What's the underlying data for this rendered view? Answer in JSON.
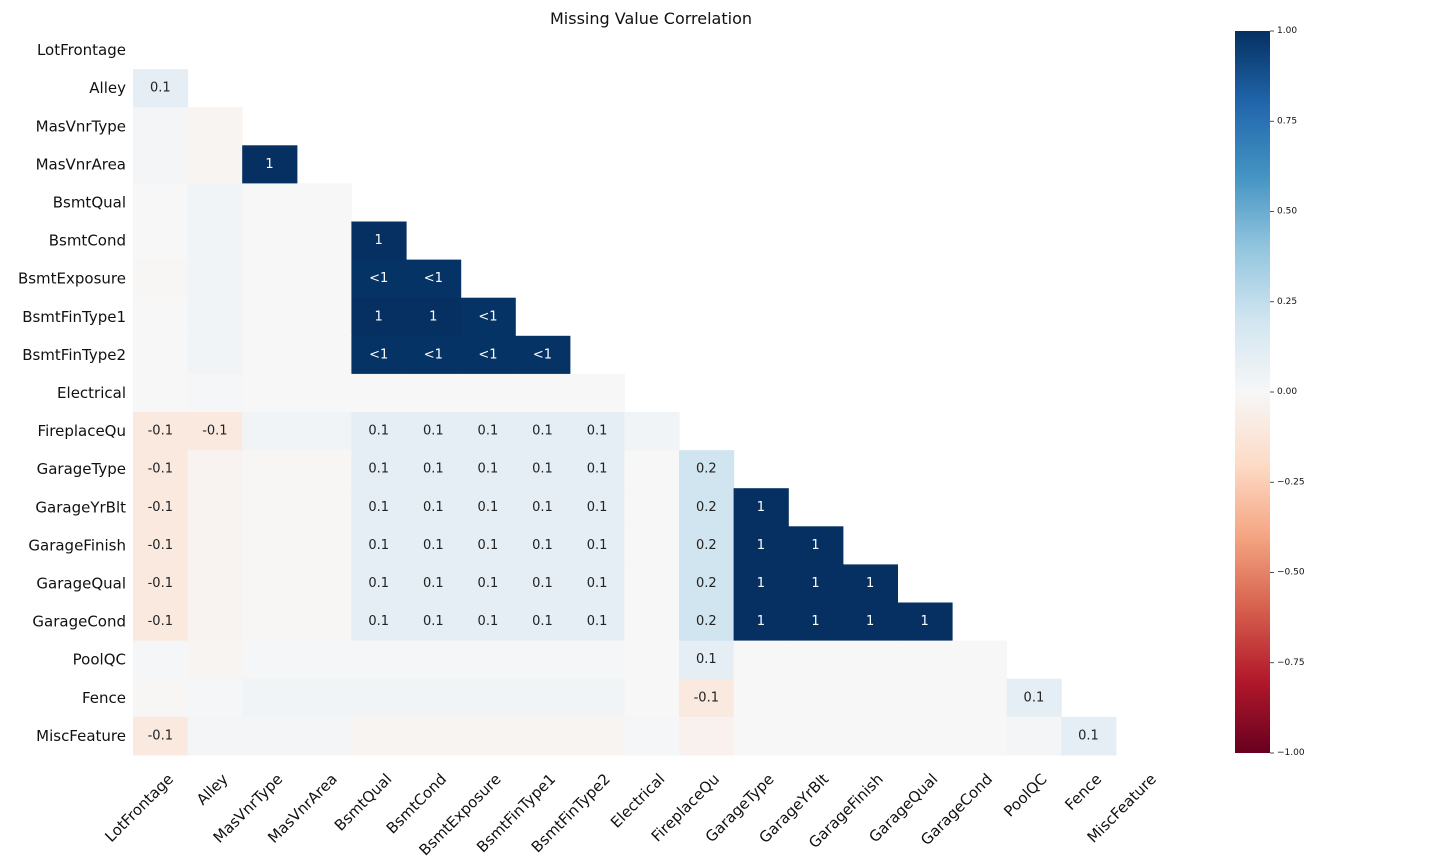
{
  "chart_data": {
    "type": "heatmap",
    "title": "Missing Value Correlation",
    "variables": [
      "LotFrontage",
      "Alley",
      "MasVnrType",
      "MasVnrArea",
      "BsmtQual",
      "BsmtCond",
      "BsmtExposure",
      "BsmtFinType1",
      "BsmtFinType2",
      "Electrical",
      "FireplaceQu",
      "GarageType",
      "GarageYrBlt",
      "GarageFinish",
      "GarageQual",
      "GarageCond",
      "PoolQC",
      "Fence",
      "MiscFeature"
    ],
    "matrix_lower_triangle": [
      [],
      [
        0.1
      ],
      [
        0.02,
        -0.02
      ],
      [
        0.02,
        -0.02,
        1.0
      ],
      [
        0.0,
        0.03,
        0.0,
        0.0
      ],
      [
        0.0,
        0.03,
        0.0,
        0.0,
        1.0
      ],
      [
        -0.01,
        0.03,
        0.0,
        0.0,
        0.99,
        0.99
      ],
      [
        0.0,
        0.03,
        0.0,
        0.0,
        1.0,
        1.0,
        0.99
      ],
      [
        0.0,
        0.03,
        0.0,
        0.0,
        0.99,
        0.99,
        0.99,
        0.99
      ],
      [
        0.0,
        0.01,
        0.0,
        0.0,
        0.0,
        0.0,
        0.0,
        0.0,
        0.0
      ],
      [
        -0.1,
        -0.1,
        0.03,
        0.03,
        0.1,
        0.1,
        0.1,
        0.1,
        0.1,
        0.03
      ],
      [
        -0.1,
        -0.03,
        -0.01,
        -0.01,
        0.1,
        0.1,
        0.1,
        0.1,
        0.1,
        0.0,
        0.2
      ],
      [
        -0.1,
        -0.03,
        -0.01,
        -0.01,
        0.1,
        0.1,
        0.1,
        0.1,
        0.1,
        0.0,
        0.2,
        1.0
      ],
      [
        -0.1,
        -0.03,
        -0.01,
        -0.01,
        0.1,
        0.1,
        0.1,
        0.1,
        0.1,
        0.0,
        0.2,
        1.0,
        1.0
      ],
      [
        -0.1,
        -0.03,
        -0.01,
        -0.01,
        0.1,
        0.1,
        0.1,
        0.1,
        0.1,
        0.0,
        0.2,
        1.0,
        1.0,
        1.0
      ],
      [
        -0.1,
        -0.03,
        -0.01,
        -0.01,
        0.1,
        0.1,
        0.1,
        0.1,
        0.1,
        0.0,
        0.2,
        1.0,
        1.0,
        1.0,
        1.0
      ],
      [
        0.01,
        -0.02,
        0.01,
        0.01,
        0.01,
        0.01,
        0.01,
        0.01,
        0.01,
        0.0,
        0.1,
        0.0,
        0.0,
        0.0,
        0.0,
        0.0
      ],
      [
        -0.01,
        0.01,
        0.03,
        0.03,
        0.03,
        0.03,
        0.03,
        0.03,
        0.03,
        0.0,
        -0.1,
        0.0,
        0.0,
        0.0,
        0.0,
        0.0,
        0.1
      ],
      [
        -0.1,
        0.02,
        0.02,
        0.02,
        -0.02,
        -0.02,
        -0.02,
        -0.02,
        -0.02,
        0.01,
        -0.04,
        0.0,
        0.0,
        0.0,
        0.0,
        0.0,
        0.02,
        0.1
      ]
    ],
    "cell_labels_lower_triangle": [
      [],
      [
        "0.1"
      ],
      [
        "",
        ""
      ],
      [
        "",
        "",
        "1"
      ],
      [
        "",
        "",
        "",
        ""
      ],
      [
        "",
        "",
        "",
        "",
        "1"
      ],
      [
        "",
        "",
        "",
        "",
        "<1",
        "<1"
      ],
      [
        "",
        "",
        "",
        "",
        "1",
        "1",
        "<1"
      ],
      [
        "",
        "",
        "",
        "",
        "<1",
        "<1",
        "<1",
        "<1"
      ],
      [
        "",
        "",
        "",
        "",
        "",
        "",
        "",
        "",
        ""
      ],
      [
        "-0.1",
        "-0.1",
        "",
        "",
        "0.1",
        "0.1",
        "0.1",
        "0.1",
        "0.1",
        ""
      ],
      [
        "-0.1",
        "",
        "",
        "",
        "0.1",
        "0.1",
        "0.1",
        "0.1",
        "0.1",
        "",
        "0.2"
      ],
      [
        "-0.1",
        "",
        "",
        "",
        "0.1",
        "0.1",
        "0.1",
        "0.1",
        "0.1",
        "",
        "0.2",
        "1"
      ],
      [
        "-0.1",
        "",
        "",
        "",
        "0.1",
        "0.1",
        "0.1",
        "0.1",
        "0.1",
        "",
        "0.2",
        "1",
        "1"
      ],
      [
        "-0.1",
        "",
        "",
        "",
        "0.1",
        "0.1",
        "0.1",
        "0.1",
        "0.1",
        "",
        "0.2",
        "1",
        "1",
        "1"
      ],
      [
        "-0.1",
        "",
        "",
        "",
        "0.1",
        "0.1",
        "0.1",
        "0.1",
        "0.1",
        "",
        "0.2",
        "1",
        "1",
        "1",
        "1"
      ],
      [
        "",
        "",
        "",
        "",
        "",
        "",
        "",
        "",
        "",
        "",
        "0.1",
        "",
        "",
        "",
        "",
        ""
      ],
      [
        "",
        "",
        "",
        "",
        "",
        "",
        "",
        "",
        "",
        "",
        "-0.1",
        "",
        "",
        "",
        "",
        "",
        "0.1"
      ],
      [
        "-0.1",
        "",
        "",
        "",
        "",
        "",
        "",
        "",
        "",
        "",
        "",
        "",
        "",
        "",
        "",
        "",
        "",
        "0.1"
      ]
    ],
    "colorbar": {
      "range": [
        -1.0,
        1.0
      ],
      "ticks": [
        "1.00",
        "0.75",
        "0.50",
        "0.25",
        "0.00",
        "−0.25",
        "−0.50",
        "−0.75",
        "−1.00"
      ],
      "tick_values": [
        1.0,
        0.75,
        0.5,
        0.25,
        0.0,
        -0.25,
        -0.5,
        -0.75,
        -1.0
      ],
      "colormap": "RdBu",
      "stops": [
        "#67001f",
        "#b2182b",
        "#d6604d",
        "#f4a582",
        "#fddbc7",
        "#f7f7f7",
        "#d1e5f0",
        "#92c5de",
        "#4393c3",
        "#2166ac",
        "#053061"
      ]
    },
    "grid": false,
    "legend": "colorbar-right"
  }
}
